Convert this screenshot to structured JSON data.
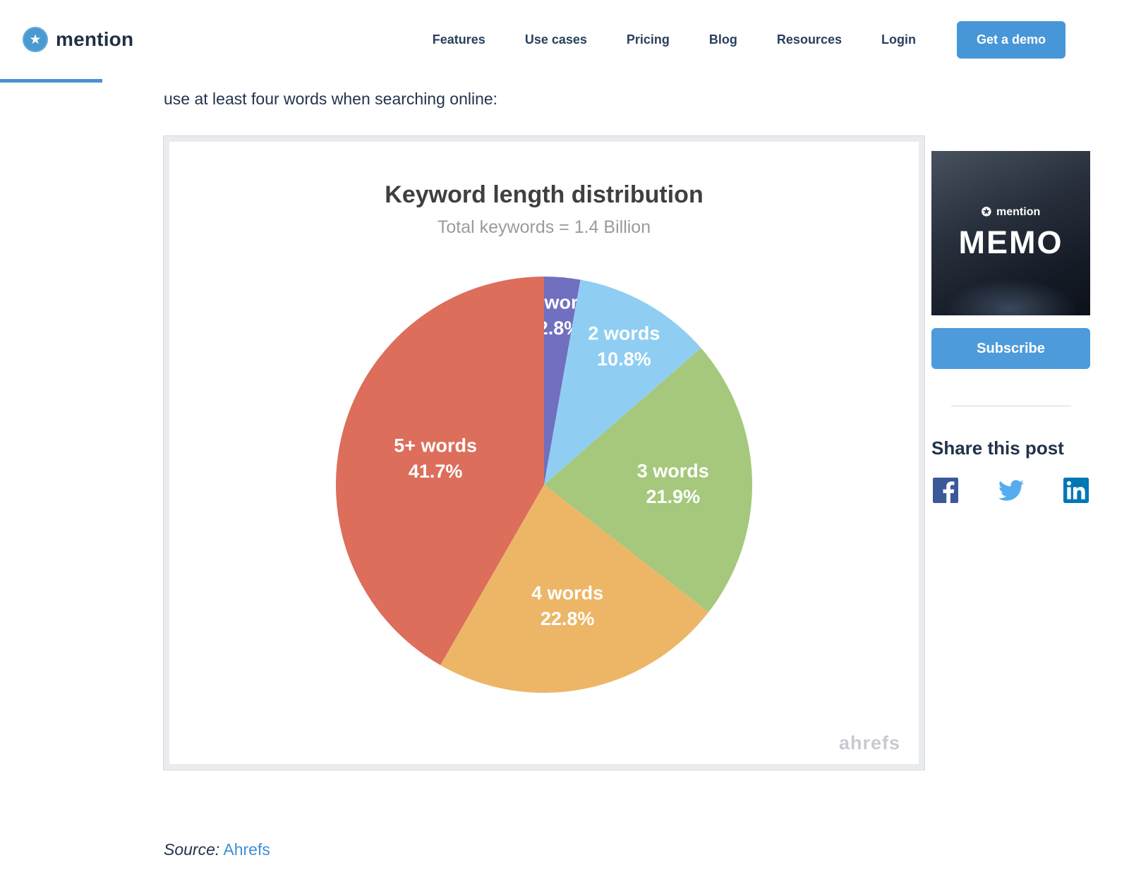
{
  "header": {
    "logo_text": "mention",
    "nav": [
      {
        "label": "Features"
      },
      {
        "label": "Use cases"
      },
      {
        "label": "Pricing"
      },
      {
        "label": "Blog"
      },
      {
        "label": "Resources"
      },
      {
        "label": "Login"
      }
    ],
    "cta_label": "Get a demo"
  },
  "article": {
    "intro_text": "use at least four words when searching online:",
    "source_label": "Source:",
    "source_link": "Ahrefs"
  },
  "chart_data": {
    "type": "pie",
    "title": "Keyword length distribution",
    "subtitle": "Total keywords = 1.4 Billion",
    "categories": [
      "1 word",
      "2 words",
      "3 words",
      "4 words",
      "5+ words"
    ],
    "values": [
      2.8,
      10.8,
      21.9,
      22.8,
      41.7
    ],
    "unit": "%",
    "colors": [
      "#716fc0",
      "#8fcef2",
      "#a5c87c",
      "#ecb666",
      "#dc6e5b"
    ],
    "start_angle_deg": 0,
    "direction": "clockwise",
    "label_radius_fractions": [
      0.83,
      0.78,
      0.62,
      0.58,
      0.54
    ],
    "watermark": "ahrefs"
  },
  "sidebar": {
    "memo_card": {
      "brand": "mention",
      "title": "MEMO",
      "star_glyph": "✪"
    },
    "subscribe_label": "Subscribe",
    "share_heading": "Share this post",
    "social": [
      {
        "name": "facebook",
        "color": "#3b5998"
      },
      {
        "name": "twitter",
        "color": "#55acee"
      },
      {
        "name": "linkedin",
        "color": "#0077b5"
      }
    ]
  },
  "colors": {
    "accent_blue": "#4796d8",
    "progress_blue": "#4a90d2",
    "text_navy": "#24344d"
  },
  "glyphs": {
    "logo_star": "★"
  }
}
